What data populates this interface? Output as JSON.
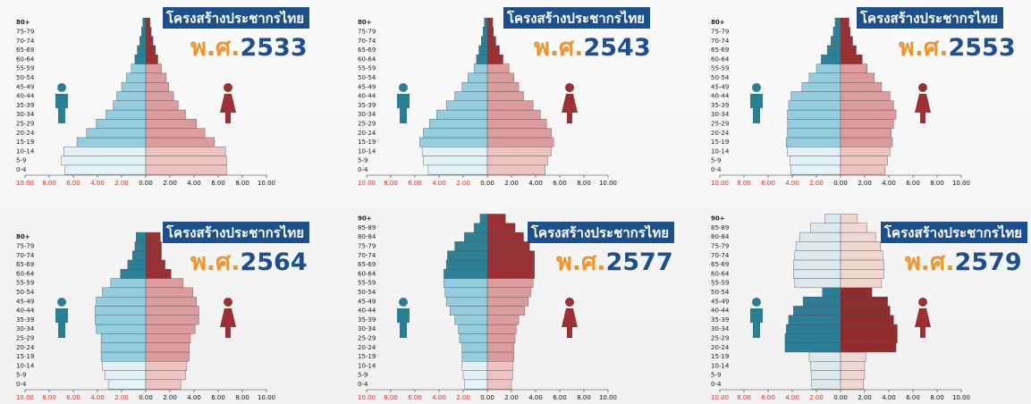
{
  "chart_data": [
    {
      "type": "pyramid",
      "title": "โครงสร้างประชากรไทย",
      "era": "พ.ศ.",
      "year": "2533",
      "categories": [
        "0-4",
        "5-9",
        "10-14",
        "15-19",
        "20-24",
        "25-29",
        "30-34",
        "35-39",
        "40-44",
        "45-49",
        "50-54",
        "55-59",
        "60-64",
        "65-69",
        "70-74",
        "75-79",
        "80+"
      ],
      "series": [
        {
          "side": "left",
          "values": [
            6.7,
            7.0,
            6.8,
            5.7,
            4.9,
            4.1,
            3.3,
            2.7,
            2.4,
            2.0,
            1.6,
            1.2,
            0.9,
            0.7,
            0.5,
            0.35,
            0.25
          ],
          "colors": [
            "#e4f2f7",
            "#e4f2f7",
            "#e4f2f7",
            "#93cddf",
            "#93cddf",
            "#93cddf",
            "#93cddf",
            "#93cddf",
            "#93cddf",
            "#93cddf",
            "#93cddf",
            "#93cddf",
            "#2c8197",
            "#2c8197",
            "#2c8197",
            "#2c8197",
            "#2c8197"
          ]
        },
        {
          "side": "right",
          "values": [
            6.7,
            6.7,
            6.6,
            5.7,
            4.9,
            4.2,
            3.3,
            2.7,
            2.3,
            1.9,
            1.7,
            1.3,
            1.0,
            0.8,
            0.6,
            0.45,
            0.35
          ],
          "colors": [
            "#f0c3c3",
            "#f0c3c3",
            "#f0c3c3",
            "#dc9c9e",
            "#dc9c9e",
            "#dc9c9e",
            "#dc9c9e",
            "#dc9c9e",
            "#dc9c9e",
            "#dc9c9e",
            "#dc9c9e",
            "#dc9c9e",
            "#983034",
            "#983034",
            "#983034",
            "#983034",
            "#983034"
          ]
        }
      ],
      "xlim": [
        -10,
        10
      ],
      "xticks": [
        {
          "value": -10,
          "label": "10.00"
        },
        {
          "value": -8,
          "label": "8.00"
        },
        {
          "value": -6,
          "label": "6.00"
        },
        {
          "value": -4,
          "label": "4.00"
        },
        {
          "value": -2,
          "label": "2.00"
        },
        {
          "value": 0,
          "label": "0.00"
        },
        {
          "value": 2,
          "label": "2.00"
        },
        {
          "value": 4,
          "label": "4.00"
        },
        {
          "value": 6,
          "label": "6.00"
        },
        {
          "value": 8,
          "label": "8.00"
        },
        {
          "value": 10,
          "label": "10.00"
        }
      ],
      "left_tick_color": "#c0392b"
    },
    {
      "type": "pyramid",
      "title": "โครงสร้างประชากรไทย",
      "era": "พ.ศ.",
      "year": "2543",
      "categories": [
        "0-4",
        "5-9",
        "10-14",
        "15-19",
        "20-24",
        "25-29",
        "30-34",
        "35-39",
        "40-44",
        "45-49",
        "50-54",
        "55-59",
        "60-64",
        "65-69",
        "70-74",
        "75-79",
        "80+"
      ],
      "series": [
        {
          "side": "left",
          "values": [
            4.9,
            5.3,
            5.4,
            5.6,
            5.3,
            4.8,
            4.2,
            3.4,
            2.7,
            2.1,
            1.6,
            1.1,
            0.9,
            0.7,
            0.5,
            0.35,
            0.25
          ],
          "colors": [
            "#e4f2f7",
            "#e4f2f7",
            "#e4f2f7",
            "#93cddf",
            "#93cddf",
            "#93cddf",
            "#93cddf",
            "#93cddf",
            "#93cddf",
            "#93cddf",
            "#93cddf",
            "#93cddf",
            "#2c8197",
            "#2c8197",
            "#2c8197",
            "#2c8197",
            "#2c8197"
          ]
        },
        {
          "side": "right",
          "values": [
            4.8,
            5.0,
            5.3,
            5.5,
            5.3,
            4.9,
            4.4,
            3.8,
            3.0,
            2.6,
            2.2,
            1.8,
            1.3,
            1.0,
            0.7,
            0.5,
            0.45
          ],
          "colors": [
            "#f0c3c3",
            "#f0c3c3",
            "#f0c3c3",
            "#dc9c9e",
            "#dc9c9e",
            "#dc9c9e",
            "#dc9c9e",
            "#dc9c9e",
            "#dc9c9e",
            "#dc9c9e",
            "#dc9c9e",
            "#dc9c9e",
            "#983034",
            "#983034",
            "#983034",
            "#983034",
            "#983034"
          ]
        }
      ],
      "xlim": [
        -10,
        10
      ],
      "xticks": [
        {
          "value": -10,
          "label": "10.00"
        },
        {
          "value": -8,
          "label": "8.00"
        },
        {
          "value": -6,
          "label": "6.00"
        },
        {
          "value": -4,
          "label": "4.00"
        },
        {
          "value": -2,
          "label": "2.00"
        },
        {
          "value": 0,
          "label": "0.00"
        },
        {
          "value": 2,
          "label": "2.00"
        },
        {
          "value": 4,
          "label": "4.00"
        },
        {
          "value": 6,
          "label": "6.00"
        },
        {
          "value": 8,
          "label": "8.00"
        },
        {
          "value": 10,
          "label": "10.00"
        }
      ],
      "left_tick_color": "#c0392b"
    },
    {
      "type": "pyramid",
      "title": "โครงสร้างประชากรไทย",
      "era": "พ.ศ.",
      "year": "2553",
      "categories": [
        "0-4",
        "5-9",
        "10-14",
        "15-19",
        "20-24",
        "25-29",
        "30-34",
        "35-39",
        "40-44",
        "45-49",
        "50-54",
        "55-59",
        "60-64",
        "65-69",
        "70-74",
        "75-79",
        "80+"
      ],
      "series": [
        {
          "side": "left",
          "values": [
            4.1,
            4.2,
            4.4,
            4.5,
            4.4,
            4.4,
            4.4,
            4.3,
            4.1,
            3.2,
            2.6,
            2.0,
            1.6,
            1.1,
            0.8,
            0.6,
            0.45
          ],
          "colors": [
            "#e4f2f7",
            "#e4f2f7",
            "#e4f2f7",
            "#93cddf",
            "#93cddf",
            "#93cddf",
            "#93cddf",
            "#93cddf",
            "#93cddf",
            "#93cddf",
            "#93cddf",
            "#93cddf",
            "#2c8197",
            "#2c8197",
            "#2c8197",
            "#2c8197",
            "#2c8197"
          ]
        },
        {
          "side": "right",
          "values": [
            3.7,
            3.9,
            4.1,
            4.3,
            4.2,
            4.4,
            4.6,
            4.4,
            4.1,
            3.4,
            2.8,
            2.2,
            1.8,
            1.3,
            1.0,
            0.8,
            0.7
          ],
          "colors": [
            "#f0c3c3",
            "#f0c3c3",
            "#f0c3c3",
            "#dc9c9e",
            "#dc9c9e",
            "#dc9c9e",
            "#dc9c9e",
            "#dc9c9e",
            "#dc9c9e",
            "#dc9c9e",
            "#dc9c9e",
            "#dc9c9e",
            "#983034",
            "#983034",
            "#983034",
            "#983034",
            "#983034"
          ]
        }
      ],
      "xlim": [
        -10,
        10
      ],
      "xticks": [
        {
          "value": -10,
          "label": "10.00"
        },
        {
          "value": -8,
          "label": "8.00"
        },
        {
          "value": -6,
          "label": "6.00"
        },
        {
          "value": -4,
          "label": "4.00"
        },
        {
          "value": -2,
          "label": "2.00"
        },
        {
          "value": 0,
          "label": "0.00"
        },
        {
          "value": 2,
          "label": "2.00"
        },
        {
          "value": 4,
          "label": "4.00"
        },
        {
          "value": 6,
          "label": "6.00"
        },
        {
          "value": 8,
          "label": "8.00"
        },
        {
          "value": 10,
          "label": "10.00"
        }
      ],
      "left_tick_color": "#c0392b"
    },
    {
      "type": "pyramid",
      "title": "โครงสร้างประชากรไทย",
      "era": "พ.ศ.",
      "year": "2564",
      "categories": [
        "0-4",
        "5-9",
        "10-14",
        "15-19",
        "20-24",
        "25-29",
        "30-34",
        "35-39",
        "40-44",
        "45-49",
        "50-54",
        "55-59",
        "60-64",
        "65-69",
        "70-74",
        "75-79",
        "80+"
      ],
      "series": [
        {
          "side": "left",
          "values": [
            3.1,
            3.4,
            3.6,
            3.7,
            3.7,
            3.7,
            4.1,
            4.2,
            4.2,
            4.1,
            3.6,
            2.9,
            2.1,
            1.5,
            1.1,
            0.9,
            0.8
          ],
          "colors": [
            "#e4f2f7",
            "#e4f2f7",
            "#e4f2f7",
            "#93cddf",
            "#93cddf",
            "#93cddf",
            "#93cddf",
            "#93cddf",
            "#93cddf",
            "#93cddf",
            "#93cddf",
            "#93cddf",
            "#2c8197",
            "#2c8197",
            "#2c8197",
            "#2c8197",
            "#2c8197"
          ]
        },
        {
          "side": "right",
          "values": [
            2.9,
            3.3,
            3.4,
            3.6,
            3.6,
            3.7,
            4.1,
            4.4,
            4.4,
            4.2,
            3.9,
            3.1,
            2.1,
            1.6,
            1.3,
            1.3,
            1.2
          ],
          "colors": [
            "#f0c3c3",
            "#f0c3c3",
            "#f0c3c3",
            "#dc9c9e",
            "#dc9c9e",
            "#dc9c9e",
            "#dc9c9e",
            "#dc9c9e",
            "#dc9c9e",
            "#dc9c9e",
            "#dc9c9e",
            "#dc9c9e",
            "#983034",
            "#983034",
            "#983034",
            "#983034",
            "#983034"
          ]
        }
      ],
      "xlim": [
        -10,
        10
      ],
      "xticks": [
        {
          "value": -10,
          "label": "10.00"
        },
        {
          "value": -8,
          "label": "8.00"
        },
        {
          "value": -6,
          "label": "6.00"
        },
        {
          "value": -4,
          "label": "4.00"
        },
        {
          "value": -2,
          "label": "2.00"
        },
        {
          "value": 0,
          "label": "0.00"
        },
        {
          "value": 2,
          "label": "2.00"
        },
        {
          "value": 4,
          "label": "4.00"
        },
        {
          "value": 6,
          "label": "6.00"
        },
        {
          "value": 8,
          "label": "8.00"
        },
        {
          "value": 10,
          "label": "10.00"
        }
      ],
      "left_tick_color": "#c0392b"
    },
    {
      "type": "pyramid",
      "title": "โครงสร้างประชากรไทย",
      "era": "พ.ศ.",
      "year": "2577",
      "categories": [
        "0-4",
        "5-9",
        "10-14",
        "15-19",
        "20-24",
        "25-29",
        "30-34",
        "35-39",
        "40-44",
        "45-49",
        "50-54",
        "55-59",
        "60-64",
        "65-69",
        "70-74",
        "75-79",
        "80-84",
        "85-89",
        "90+"
      ],
      "series": [
        {
          "side": "left",
          "values": [
            1.9,
            2.0,
            2.1,
            2.1,
            2.1,
            2.3,
            2.4,
            2.7,
            3.1,
            3.4,
            3.5,
            3.6,
            3.6,
            3.4,
            3.3,
            2.7,
            1.9,
            1.1,
            0.6
          ],
          "colors": [
            "#e4f2f7",
            "#e4f2f7",
            "#e4f2f7",
            "#93cddf",
            "#93cddf",
            "#93cddf",
            "#93cddf",
            "#93cddf",
            "#93cddf",
            "#93cddf",
            "#93cddf",
            "#93cddf",
            "#2c8197",
            "#2c8197",
            "#2c8197",
            "#2c8197",
            "#2c8197",
            "#2c8197",
            "#2c8197"
          ]
        },
        {
          "side": "right",
          "values": [
            2.0,
            2.1,
            2.1,
            2.2,
            2.2,
            2.3,
            2.4,
            2.6,
            3.1,
            3.4,
            3.6,
            3.8,
            3.9,
            3.9,
            3.9,
            3.5,
            3.0,
            2.3,
            1.5
          ],
          "colors": [
            "#f0c3c3",
            "#f0c3c3",
            "#f0c3c3",
            "#dc9c9e",
            "#dc9c9e",
            "#dc9c9e",
            "#dc9c9e",
            "#dc9c9e",
            "#dc9c9e",
            "#dc9c9e",
            "#dc9c9e",
            "#dc9c9e",
            "#983034",
            "#983034",
            "#983034",
            "#983034",
            "#983034",
            "#983034",
            "#983034"
          ]
        }
      ],
      "xlim": [
        -10,
        10
      ],
      "xticks": [
        {
          "value": -10,
          "label": "10.00"
        },
        {
          "value": -8,
          "label": "8.00"
        },
        {
          "value": -6,
          "label": "6.00"
        },
        {
          "value": -4,
          "label": "4.00"
        },
        {
          "value": -2,
          "label": "2.00"
        },
        {
          "value": 0,
          "label": "0.00"
        },
        {
          "value": 2,
          "label": "2.00"
        },
        {
          "value": 4,
          "label": "4.00"
        },
        {
          "value": 6,
          "label": "6.00"
        },
        {
          "value": 8,
          "label": "8.00"
        },
        {
          "value": 10,
          "label": "10.00"
        }
      ],
      "left_tick_color": "#c0392b"
    },
    {
      "type": "pyramid",
      "title": "โครงสร้างประชากรไทย",
      "era": "พ.ศ.",
      "year": "2579",
      "categories": [
        "0-4",
        "5-9",
        "10-14",
        "15-19",
        "20-24",
        "25-29",
        "30-34",
        "35-39",
        "40-44",
        "45-49",
        "50-54",
        "55-59",
        "60-64",
        "65-69",
        "70-74",
        "75-79",
        "80-84",
        "85-89",
        "90+"
      ],
      "series": [
        {
          "side": "left",
          "values": [
            2.4,
            2.4,
            2.5,
            2.6,
            4.6,
            4.6,
            4.5,
            4.3,
            3.9,
            3.1,
            1.5,
            3.8,
            3.9,
            3.9,
            3.8,
            3.7,
            3.4,
            2.5,
            1.3
          ],
          "colors": [
            "#dde8ed",
            "#dde8ed",
            "#dde8ed",
            "#dde8ed",
            "#2b7e96",
            "#2b7e96",
            "#2b7e96",
            "#2b7e96",
            "#2b7e96",
            "#2b7e96",
            "#2b7e96",
            "#dde8ed",
            "#dde8ed",
            "#dde8ed",
            "#dde8ed",
            "#dde8ed",
            "#dde8ed",
            "#dde8ed",
            "#dde8ed"
          ]
        },
        {
          "side": "right",
          "values": [
            1.9,
            2.0,
            2.0,
            2.1,
            4.6,
            4.7,
            4.7,
            4.4,
            4.1,
            3.9,
            2.6,
            3.4,
            3.6,
            3.6,
            3.5,
            3.3,
            2.9,
            2.2,
            1.4
          ],
          "colors": [
            "#efd6d0",
            "#efd6d0",
            "#efd6d0",
            "#efd6d0",
            "#8f2c2d",
            "#8f2c2d",
            "#8f2c2d",
            "#8f2c2d",
            "#8f2c2d",
            "#8f2c2d",
            "#8f2c2d",
            "#efd6d0",
            "#efd6d0",
            "#efd6d0",
            "#efd6d0",
            "#efd6d0",
            "#efd6d0",
            "#efd6d0",
            "#efd6d0"
          ]
        }
      ],
      "xlim": [
        -10,
        10
      ],
      "xticks": [
        {
          "value": -10,
          "label": "10.00"
        },
        {
          "value": -8,
          "label": "8.00"
        },
        {
          "value": -6,
          "label": "6.00"
        },
        {
          "value": -4,
          "label": "4.00"
        },
        {
          "value": -2,
          "label": "2.00"
        },
        {
          "value": 0,
          "label": "0.00"
        },
        {
          "value": 2,
          "label": "2.00"
        },
        {
          "value": 4,
          "label": "4.00"
        },
        {
          "value": 6,
          "label": "6.00"
        },
        {
          "value": 8,
          "label": "8.00"
        },
        {
          "value": 10,
          "label": "10.00"
        }
      ],
      "left_tick_color": "#c0392b"
    }
  ]
}
